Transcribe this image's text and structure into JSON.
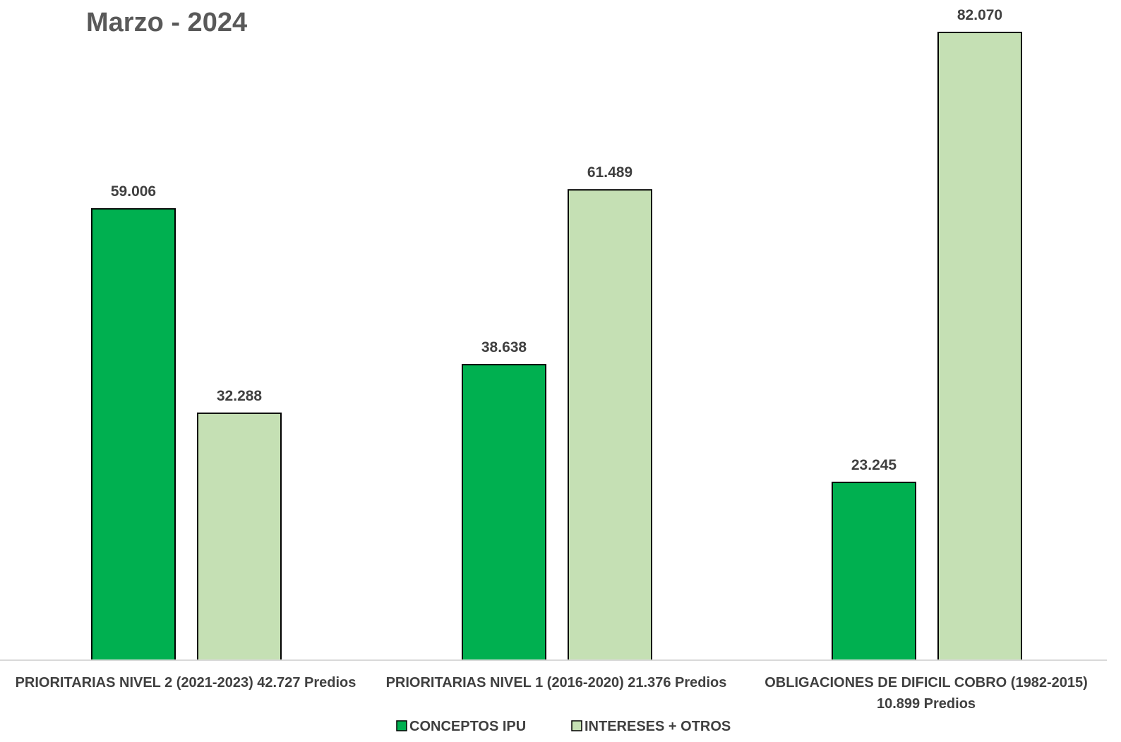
{
  "chart_data": {
    "type": "bar",
    "title": "Marzo - 2024",
    "categories": [
      [
        "PRIORITARIAS NIVEL 2 (2021-2023) 42.727 Predios"
      ],
      [
        "PRIORITARIAS NIVEL 1 (2016-2020) 21.376 Predios"
      ],
      [
        "OBLIGACIONES DE DIFICIL COBRO (1982-2015)",
        "10.899 Predios"
      ]
    ],
    "series": [
      {
        "name": "CONCEPTOS IPU",
        "color": "#00B050",
        "values": [
          59006,
          38638,
          23245
        ],
        "labels": [
          "59.006",
          "38.638",
          "23.245"
        ]
      },
      {
        "name": "INTERESES + OTROS",
        "color": "#C5E0B4",
        "values": [
          32288,
          61489,
          82070
        ],
        "labels": [
          "32.288",
          "61.489",
          "82.070"
        ]
      }
    ],
    "ylim": [
      0,
      90000
    ],
    "grid": false,
    "legend_position": "bottom",
    "xlabel": "",
    "ylabel": ""
  }
}
